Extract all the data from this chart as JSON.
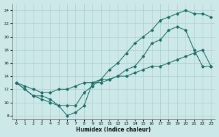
{
  "xlabel": "Humidex (Indice chaleur)",
  "bg_color": "#cce8e8",
  "line_color": "#1a7068",
  "grid_color": "#aacece",
  "xlim": [
    -0.5,
    23.5
  ],
  "ylim": [
    7.5,
    25.0
  ],
  "xticks": [
    0,
    1,
    2,
    3,
    4,
    5,
    6,
    7,
    8,
    9,
    10,
    11,
    12,
    13,
    14,
    15,
    16,
    17,
    18,
    19,
    20,
    21,
    22,
    23
  ],
  "yticks": [
    8,
    10,
    12,
    14,
    16,
    18,
    20,
    22,
    24
  ],
  "line1_x": [
    0,
    1,
    2,
    3,
    4,
    5,
    6,
    7,
    8,
    9,
    10,
    11,
    12,
    13,
    14,
    15,
    16,
    17,
    18,
    19,
    20,
    21,
    22,
    23
  ],
  "line1_y": [
    13,
    12,
    11,
    10.5,
    10,
    9.5,
    8,
    8.5,
    9.5,
    13,
    13,
    13.5,
    14,
    15,
    15.5,
    17,
    19,
    19.5,
    21,
    21.5,
    21,
    18,
    15.5,
    15.5
  ],
  "line2_x": [
    0,
    2,
    3,
    4,
    5,
    6,
    7,
    8,
    9,
    10,
    11,
    12,
    13,
    14,
    15,
    16,
    17,
    18,
    19,
    20,
    21,
    22,
    23
  ],
  "line2_y": [
    13,
    11,
    11,
    10.5,
    9.5,
    9.5,
    9.5,
    11.5,
    12.5,
    13.5,
    15,
    16,
    17.5,
    19,
    20,
    21,
    22.5,
    23,
    23.5,
    24,
    23.5,
    23.5,
    23
  ],
  "line3_x": [
    0,
    1,
    2,
    3,
    4,
    5,
    6,
    7,
    8,
    9,
    10,
    11,
    12,
    13,
    14,
    15,
    16,
    17,
    18,
    19,
    20,
    21,
    22,
    23
  ],
  "line3_y": [
    13,
    12.5,
    12,
    11.5,
    11.5,
    12,
    12,
    12.5,
    13,
    13,
    13.5,
    13.5,
    14,
    14,
    14.5,
    15,
    15.5,
    15.5,
    16,
    16.5,
    17,
    17.5,
    18,
    15.5
  ]
}
